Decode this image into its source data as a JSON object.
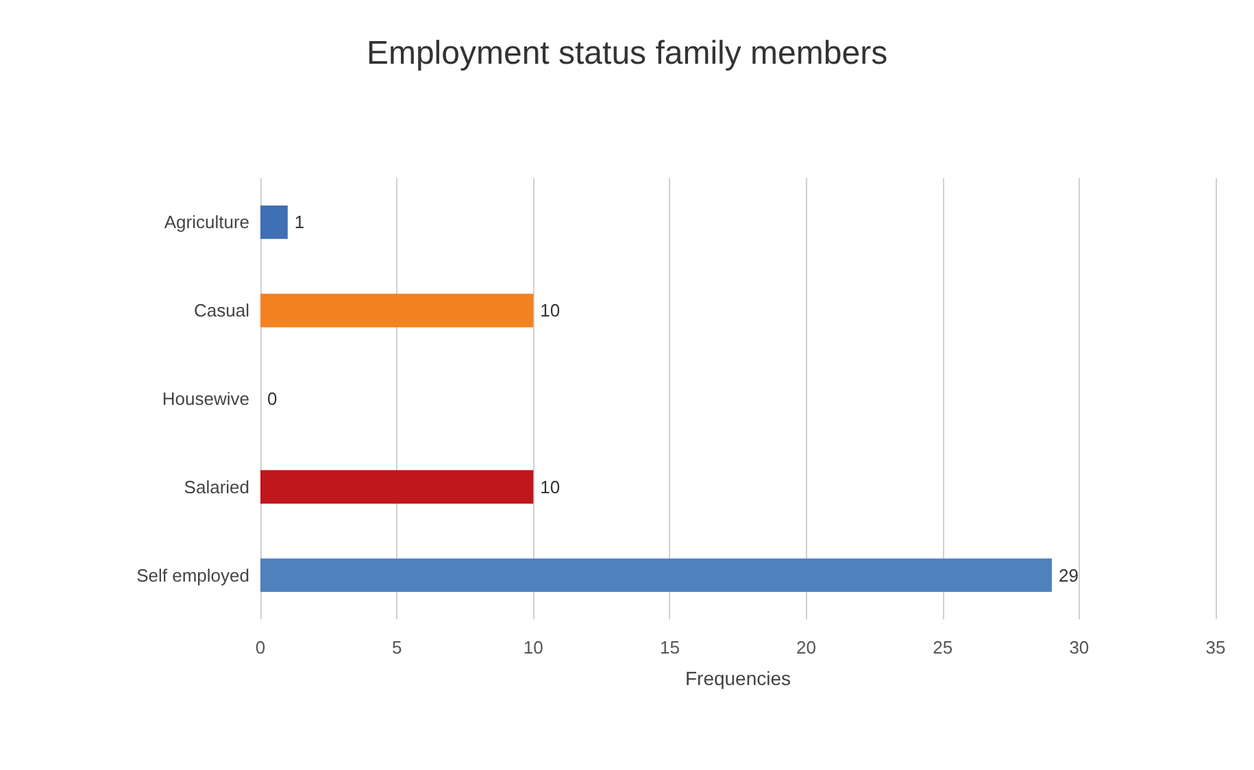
{
  "chart_data": {
    "type": "bar",
    "orientation": "horizontal",
    "title": "Employment status family members",
    "xlabel": "Frequencies",
    "categories": [
      "Agriculture",
      "Casual",
      "Housewive",
      "Salaried",
      "Self employed"
    ],
    "values": [
      1,
      10,
      0,
      10,
      29
    ],
    "colors": [
      "#3f6fb5",
      "#f58220",
      "#4f81bd",
      "#c0171c",
      "#4f81bd"
    ],
    "xlim": [
      0,
      35
    ],
    "xticks": [
      0,
      5,
      10,
      15,
      20,
      25,
      30,
      35
    ],
    "grid": "x",
    "data_labels": true
  }
}
